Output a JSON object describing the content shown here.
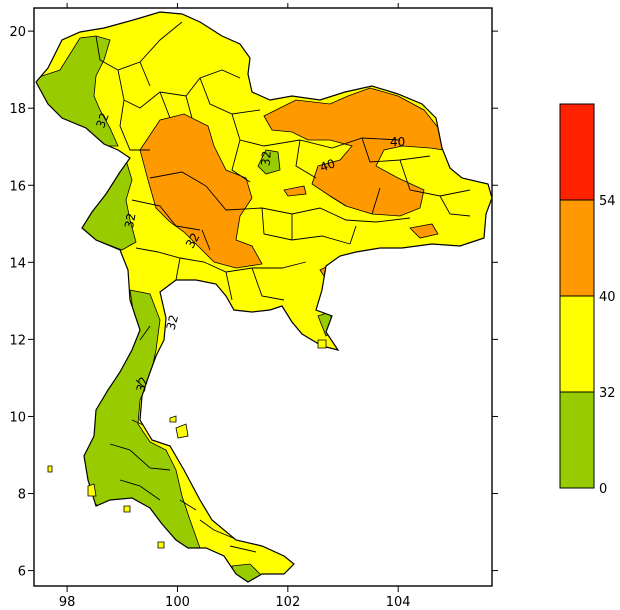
{
  "colors": {
    "green": "#99cc00",
    "yellow": "#ffff00",
    "orange": "#ff9900",
    "red": "#ff2200",
    "border": "#000000"
  },
  "chart_data": {
    "type": "heatmap",
    "x_ticks": [
      "98",
      "100",
      "102",
      "104"
    ],
    "y_ticks": [
      "6",
      "8",
      "10",
      "12",
      "14",
      "16",
      "18",
      "20"
    ],
    "xlim": [
      97.4,
      105.7
    ],
    "ylim": [
      5.6,
      20.6
    ],
    "contour_labels": [
      "40",
      "40",
      "32",
      "32",
      "32",
      "32",
      "32",
      "32"
    ],
    "legend": {
      "levels": [
        "0",
        "32",
        "40",
        "54"
      ],
      "bins": [
        {
          "from": 0,
          "to": 32,
          "color": "#99cc00"
        },
        {
          "from": 32,
          "to": 40,
          "color": "#ffff00"
        },
        {
          "from": 40,
          "to": 54,
          "color": "#ff9900"
        },
        {
          "from": 54,
          "to": 70,
          "color": "#ff2200"
        }
      ]
    }
  }
}
